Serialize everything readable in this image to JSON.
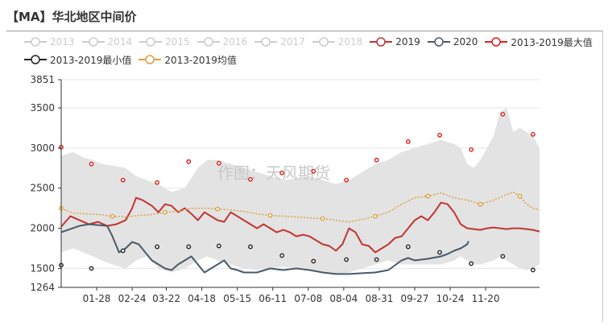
{
  "header": {
    "title": "【MA】华北地区中间价"
  },
  "legend": {
    "items": [
      {
        "label": "2013",
        "color": "#cccccc",
        "active": false
      },
      {
        "label": "2014",
        "color": "#cccccc",
        "active": false
      },
      {
        "label": "2015",
        "color": "#cccccc",
        "active": false
      },
      {
        "label": "2016",
        "color": "#cccccc",
        "active": false
      },
      {
        "label": "2017",
        "color": "#cccccc",
        "active": false
      },
      {
        "label": "2018",
        "color": "#cccccc",
        "active": false
      },
      {
        "label": "2019",
        "color": "#c23531",
        "active": true
      },
      {
        "label": "2020",
        "color": "#4a5968",
        "active": true
      },
      {
        "label": "2013-2019最大值",
        "color": "#e01f1f",
        "active": true
      },
      {
        "label": "2013-2019最小值",
        "color": "#222222",
        "active": true
      },
      {
        "label": "2013-2019均值",
        "color": "#dba043",
        "active": true
      }
    ]
  },
  "watermark": "作图：天风期货",
  "chart_data": {
    "type": "line",
    "x_ticks": [
      "01-28",
      "02-24",
      "03-22",
      "04-18",
      "05-15",
      "06-11",
      "07-08",
      "08-04",
      "08-31",
      "09-27",
      "10-24",
      "11-20"
    ],
    "x_tick_days": [
      28,
      55,
      81,
      108,
      135,
      162,
      189,
      216,
      243,
      270,
      297,
      324
    ],
    "x_range": [
      1,
      365
    ],
    "y_ticks": [
      1264,
      1500,
      2000,
      2500,
      3000,
      3500,
      3851
    ],
    "ylim": [
      1264,
      3851
    ],
    "band": {
      "days": [
        1,
        10,
        18,
        25,
        32,
        40,
        50,
        58,
        66,
        75,
        85,
        95,
        105,
        112,
        120,
        130,
        140,
        150,
        160,
        170,
        180,
        190,
        200,
        210,
        220,
        230,
        240,
        250,
        260,
        270,
        280,
        290,
        300,
        305,
        310,
        315,
        320,
        330,
        335,
        340,
        345,
        350,
        355,
        360,
        365
      ],
      "max": [
        2900,
        2950,
        2880,
        2850,
        2800,
        2780,
        2750,
        2650,
        2600,
        2550,
        2450,
        2500,
        2750,
        2850,
        2850,
        2800,
        2750,
        2700,
        2650,
        2600,
        2620,
        2650,
        2600,
        2550,
        2600,
        2700,
        2800,
        2850,
        2950,
        3000,
        3050,
        3100,
        3050,
        3000,
        2800,
        2750,
        2850,
        3150,
        3450,
        3500,
        3200,
        3250,
        3200,
        3150,
        3000
      ],
      "min": [
        1700,
        1750,
        1700,
        1650,
        1600,
        1550,
        1500,
        1600,
        1650,
        1500,
        1450,
        1500,
        1600,
        1650,
        1600,
        1550,
        1500,
        1480,
        1500,
        1520,
        1500,
        1480,
        1450,
        1420,
        1450,
        1500,
        1550,
        1600,
        1550,
        1550,
        1550,
        1550,
        1600,
        1650,
        1600,
        1550,
        1550,
        1600,
        1650,
        1600,
        1550,
        1500,
        1480,
        1500,
        1550
      ]
    },
    "series": [
      {
        "name": "2019",
        "color": "#c23531",
        "x": [
          1,
          8,
          15,
          22,
          29,
          36,
          43,
          50,
          55,
          58,
          63,
          70,
          75,
          80,
          85,
          90,
          95,
          100,
          105,
          110,
          115,
          120,
          125,
          130,
          135,
          140,
          145,
          150,
          155,
          160,
          165,
          170,
          175,
          180,
          185,
          190,
          195,
          200,
          205,
          210,
          215,
          220,
          225,
          230,
          235,
          240,
          245,
          250,
          255,
          260,
          265,
          270,
          275,
          280,
          285,
          290,
          295,
          300,
          305,
          310,
          315,
          320,
          325,
          330,
          335,
          340,
          345,
          350,
          355,
          360,
          365
        ],
        "y": [
          2020,
          2150,
          2100,
          2050,
          2080,
          2030,
          2050,
          2100,
          2250,
          2380,
          2350,
          2280,
          2200,
          2300,
          2280,
          2200,
          2250,
          2180,
          2100,
          2200,
          2150,
          2100,
          2080,
          2200,
          2150,
          2100,
          2050,
          2000,
          2050,
          2000,
          1950,
          1980,
          1950,
          1900,
          1920,
          1900,
          1850,
          1800,
          1780,
          1720,
          1800,
          2000,
          1950,
          1800,
          1780,
          1700,
          1750,
          1800,
          1880,
          1900,
          2000,
          2100,
          2150,
          2100,
          2200,
          2320,
          2300,
          2200,
          2050,
          2000,
          1990,
          1980,
          2000,
          2010,
          2000,
          1990,
          2000,
          2000,
          1990,
          1980,
          1960
        ]
      },
      {
        "name": "2020",
        "color": "#4a5968",
        "x": [
          1,
          8,
          15,
          22,
          29,
          36,
          40,
          45,
          50,
          55,
          60,
          65,
          70,
          75,
          80,
          85,
          90,
          95,
          100,
          105,
          110,
          115,
          120,
          125,
          130,
          135,
          140,
          150,
          160,
          170,
          180,
          190,
          200,
          210,
          220,
          230,
          240,
          250,
          260,
          265,
          270,
          280,
          290,
          295,
          300,
          305,
          310,
          311
        ],
        "y": [
          1950,
          1990,
          2030,
          2050,
          2040,
          2030,
          1900,
          1700,
          1750,
          1830,
          1800,
          1700,
          1600,
          1550,
          1500,
          1480,
          1550,
          1600,
          1650,
          1550,
          1450,
          1500,
          1550,
          1600,
          1500,
          1480,
          1450,
          1450,
          1500,
          1480,
          1500,
          1480,
          1450,
          1430,
          1430,
          1440,
          1450,
          1480,
          1600,
          1630,
          1600,
          1620,
          1650,
          1680,
          1720,
          1750,
          1800,
          1840
        ]
      },
      {
        "name": "2013-2019最大值",
        "color": "#e01f1f",
        "x": [
          1,
          24,
          48,
          74,
          98,
          121,
          145,
          169,
          193,
          218,
          241,
          265,
          289,
          313,
          337,
          360
        ],
        "y": [
          3010,
          2800,
          2600,
          2570,
          2830,
          2810,
          2610,
          2690,
          2710,
          2600,
          2850,
          3080,
          3160,
          2980,
          3420,
          3170
        ]
      },
      {
        "name": "2013-2019最小值",
        "color": "#222222",
        "x": [
          1,
          24,
          48,
          74,
          98,
          121,
          145,
          169,
          193,
          218,
          241,
          265,
          289,
          313,
          337,
          360
        ],
        "y": [
          1540,
          1500,
          1720,
          1770,
          1770,
          1780,
          1770,
          1660,
          1590,
          1610,
          1610,
          1770,
          1700,
          1560,
          1650,
          1480
        ]
      },
      {
        "name": "2013-2019均值",
        "color": "#dba043",
        "x": [
          1,
          10,
          20,
          30,
          40,
          50,
          60,
          70,
          80,
          90,
          100,
          110,
          120,
          130,
          140,
          150,
          160,
          170,
          180,
          190,
          200,
          210,
          220,
          230,
          240,
          250,
          260,
          270,
          280,
          290,
          300,
          310,
          320,
          330,
          340,
          345,
          350,
          355,
          360,
          365
        ],
        "y": [
          2250,
          2190,
          2180,
          2170,
          2150,
          2140,
          2160,
          2170,
          2200,
          2210,
          2250,
          2250,
          2240,
          2230,
          2210,
          2180,
          2160,
          2150,
          2140,
          2130,
          2120,
          2100,
          2080,
          2110,
          2150,
          2200,
          2300,
          2380,
          2400,
          2440,
          2380,
          2350,
          2300,
          2350,
          2420,
          2450,
          2400,
          2300,
          2250,
          2230
        ]
      }
    ],
    "markers": {
      "max_series": "2013-2019最大值",
      "min_series": "2013-2019最小值",
      "mean_series": "2013-2019均值"
    }
  }
}
